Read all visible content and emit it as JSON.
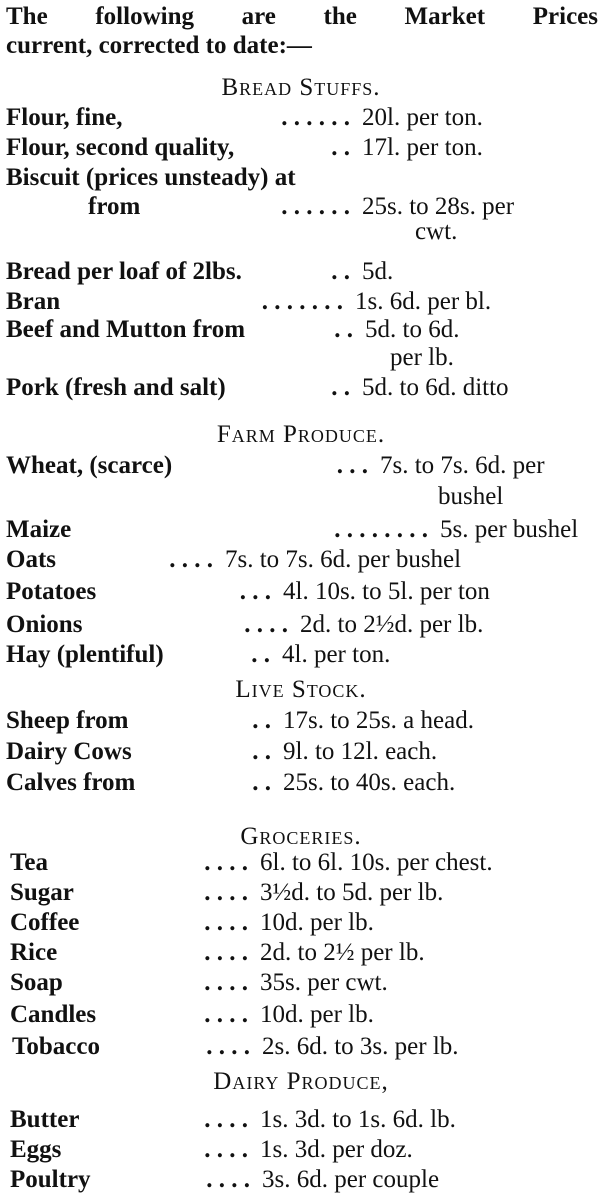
{
  "intro": {
    "line1": "The following are the Market Prices",
    "line2": "current, corrected to date:—"
  },
  "sections": [
    {
      "heading": "Bread Stuffs.",
      "rows": [
        {
          "label": "Flour, fine,",
          "dots": ".  .  .  .  .  .",
          "value": "20l. per ton."
        },
        {
          "label": "Flour, second quality,",
          "dots": ".  .",
          "value": "17l. per ton."
        },
        {
          "label": "Biscuit (prices unsteady) at",
          "dots": "",
          "value": ""
        },
        {
          "label": "from",
          "dots": ".  .  .  .  .  .",
          "value": "25s. to 28s. per"
        },
        {
          "label": "",
          "dots": "",
          "value": "cwt."
        },
        {
          "label": "Bread per loaf of 2lbs.",
          "dots": ".  .",
          "value": "5d."
        },
        {
          "label": "Bran",
          "dots": ".  .  .  .  .  .  .",
          "value": "1s. 6d. per bl."
        },
        {
          "label": "Beef and Mutton from",
          "dots": ".  .",
          "value": "5d. to 6d."
        },
        {
          "label": "",
          "dots": "",
          "value": "per lb."
        },
        {
          "label": "Pork (fresh and salt)",
          "dots": ".  .",
          "value": "5d. to 6d. ditto"
        }
      ]
    },
    {
      "heading": "Farm Produce.",
      "rows": [
        {
          "label": "Wheat, (scarce)",
          "dots": ".  .  .",
          "value": "7s. to 7s. 6d. per"
        },
        {
          "label": "",
          "dots": "",
          "value": "bushel"
        },
        {
          "label": "Maize",
          "dots": ".  .  .  .  .  .  .  .",
          "value": "5s. per bushel"
        },
        {
          "label": "Oats",
          "dots": ".  .  .  .",
          "value": "7s. to 7s. 6d. per bushel"
        },
        {
          "label": "Potatoes",
          "dots": ".  .  .",
          "value": "4l. 10s. to 5l. per ton"
        },
        {
          "label": "Onions",
          "dots": ".  .  .  .",
          "value": "2d. to 2½d. per lb."
        },
        {
          "label": "Hay (plentiful)",
          "dots": ".  .",
          "value": "4l. per ton."
        }
      ]
    },
    {
      "heading": "Live Stock.",
      "rows": [
        {
          "label": "Sheep from",
          "dots": ".  .",
          "value": "17s. to 25s. a head."
        },
        {
          "label": "Dairy Cows",
          "dots": ".  .",
          "value": "9l. to 12l. each."
        },
        {
          "label": "Calves from",
          "dots": ".  .",
          "value": "25s. to 40s. each."
        }
      ]
    },
    {
      "heading": "Groceries.",
      "rows": [
        {
          "label": "Tea",
          "dots": ".  .  .  .",
          "value": "6l. to 6l. 10s. per chest."
        },
        {
          "label": "Sugar",
          "dots": ".  .  .  .",
          "value": "3½d. to 5d. per lb."
        },
        {
          "label": "Coffee",
          "dots": ".  .  .  .",
          "value": "10d. per lb."
        },
        {
          "label": "Rice",
          "dots": ".  .  .  .",
          "value": "2d. to 2½ per lb."
        },
        {
          "label": "Soap",
          "dots": ".  .  .  .",
          "value": "35s. per cwt."
        },
        {
          "label": "Candles",
          "dots": ".  .  .  .",
          "value": "10d. per lb."
        },
        {
          "label": "Tobacco",
          "dots": ".  .  .  .",
          "value": "2s. 6d. to 3s. per lb."
        }
      ]
    },
    {
      "heading": "Dairy Produce,",
      "rows": [
        {
          "label": "Butter",
          "dots": ".  .  .  .",
          "value": "1s. 3d. to 1s. 6d. lb."
        },
        {
          "label": "Eggs",
          "dots": ".  .  .  .",
          "value": "1s. 3d. per doz."
        },
        {
          "label": "Poultry",
          "dots": ".  .  .  .",
          "value": "3s. 6d. per couple"
        }
      ]
    }
  ]
}
